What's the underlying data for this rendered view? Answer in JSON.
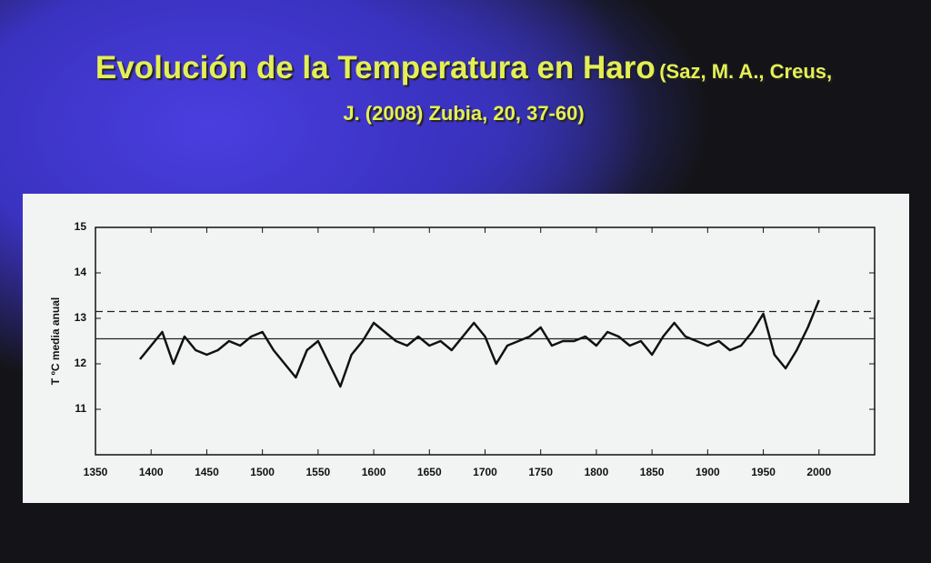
{
  "chart_data": {
    "type": "line",
    "title": "Evolución de la Temperatura en Haro",
    "subtitle": "(Saz, M. A., Creus, J. (2008) Zubia, 20, 37-60)",
    "ylabel": "T ºC media anual",
    "x": [
      1390,
      1400,
      1410,
      1420,
      1430,
      1440,
      1450,
      1460,
      1470,
      1480,
      1490,
      1500,
      1510,
      1520,
      1530,
      1540,
      1550,
      1560,
      1570,
      1580,
      1590,
      1600,
      1610,
      1620,
      1630,
      1640,
      1650,
      1660,
      1670,
      1680,
      1690,
      1700,
      1710,
      1720,
      1730,
      1740,
      1750,
      1760,
      1770,
      1780,
      1790,
      1800,
      1810,
      1820,
      1830,
      1840,
      1850,
      1860,
      1870,
      1880,
      1890,
      1900,
      1910,
      1920,
      1930,
      1940,
      1950,
      1960,
      1970,
      1980,
      1990,
      2000
    ],
    "series": [
      {
        "color": "#111111",
        "values": [
          12.1,
          12.4,
          12.7,
          12.0,
          12.6,
          12.3,
          12.2,
          12.3,
          12.5,
          12.4,
          12.6,
          12.7,
          12.3,
          12.0,
          11.7,
          12.3,
          12.5,
          12.0,
          11.5,
          12.2,
          12.5,
          12.9,
          12.7,
          12.5,
          12.4,
          12.6,
          12.4,
          12.5,
          12.3,
          12.6,
          12.9,
          12.6,
          12.0,
          12.4,
          12.5,
          12.6,
          12.8,
          12.4,
          12.5,
          12.5,
          12.6,
          12.4,
          12.7,
          12.6,
          12.4,
          12.5,
          12.2,
          12.6,
          12.9,
          12.6,
          12.5,
          12.4,
          12.5,
          12.3,
          12.4,
          12.7,
          13.1,
          12.2,
          11.9,
          12.3,
          12.8,
          13.4
        ]
      }
    ],
    "reference_lines": [
      {
        "value": 12.55,
        "style": "solid"
      },
      {
        "value": 13.15,
        "style": "dashed"
      }
    ],
    "xlim": [
      1350,
      2050
    ],
    "ylim": [
      10,
      15
    ],
    "xticks": [
      1350,
      1400,
      1450,
      1500,
      1550,
      1600,
      1650,
      1700,
      1750,
      1800,
      1850,
      1900,
      1950,
      2000
    ],
    "yticks": [
      11,
      12,
      13,
      14,
      15
    ]
  }
}
